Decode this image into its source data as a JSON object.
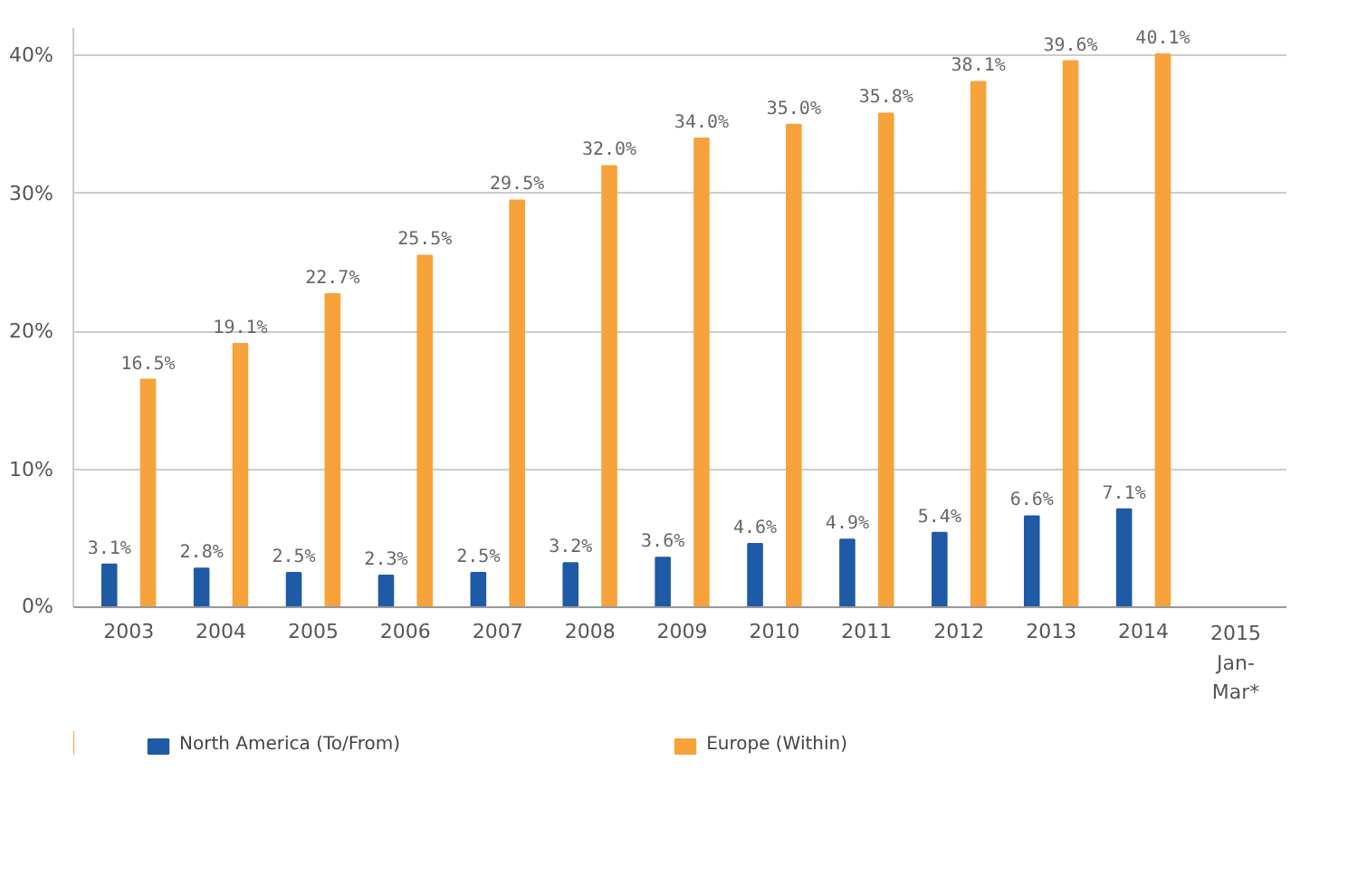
{
  "chart_data": {
    "type": "bar",
    "categories": [
      "2003",
      "2004",
      "2005",
      "2006",
      "2007",
      "2008",
      "2009",
      "2010",
      "2011",
      "2012",
      "2013",
      "2014",
      "2015\nJan-\nMar*"
    ],
    "series": [
      {
        "name": "North America (To/From)",
        "color": "#1f5aa6",
        "values": [
          3.1,
          2.8,
          2.5,
          2.3,
          2.5,
          3.2,
          3.6,
          4.6,
          4.9,
          5.4,
          6.6,
          7.1,
          null
        ],
        "value_labels": [
          "3.1%",
          "2.8%",
          "2.5%",
          "2.3%",
          "2.5%",
          "3.2%",
          "3.6%",
          "4.6%",
          "4.9%",
          "5.4%",
          "6.6%",
          "7.1%",
          null
        ]
      },
      {
        "name": "Europe (Within)",
        "color": "#f7a23b",
        "values": [
          16.5,
          19.1,
          22.7,
          25.5,
          29.5,
          32.0,
          34.0,
          35.0,
          35.8,
          38.1,
          39.6,
          40.1,
          null
        ],
        "value_labels": [
          "16.5%",
          "19.1%",
          "22.7%",
          "25.5%",
          "29.5%",
          "32.0%",
          "34.0%",
          "35.0%",
          "35.8%",
          "38.1%",
          "39.6%",
          "40.1%",
          null
        ]
      }
    ],
    "ylim": [
      0,
      42
    ],
    "yticks": [
      {
        "value": 0,
        "label": "0%"
      },
      {
        "value": 10,
        "label": "10%"
      },
      {
        "value": 20,
        "label": "20%"
      },
      {
        "value": 30,
        "label": "30%"
      },
      {
        "value": 40,
        "label": "40%"
      }
    ],
    "grid": "y",
    "legend": "bottom"
  }
}
